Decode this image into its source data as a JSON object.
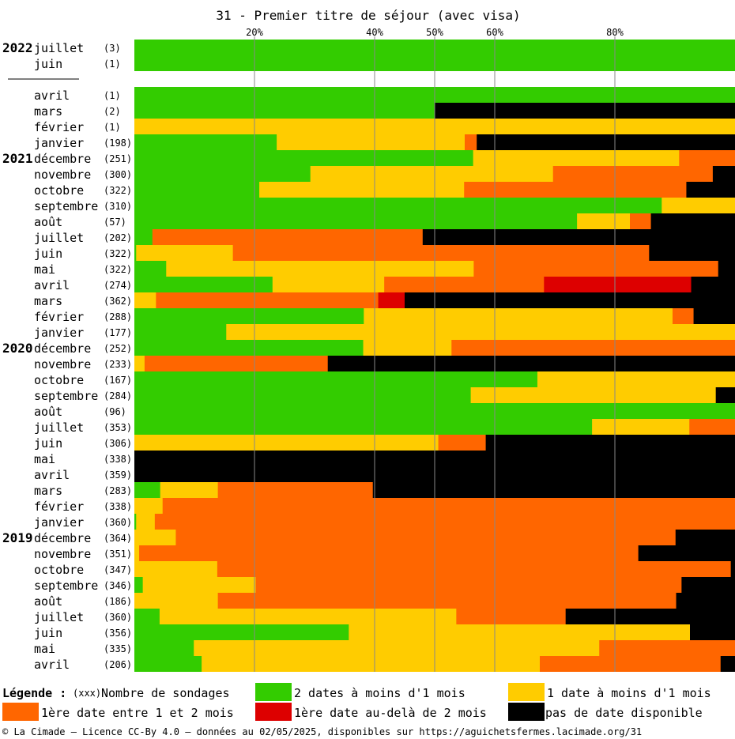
{
  "chart_data": {
    "type": "bar",
    "stacked": true,
    "orientation": "horizontal",
    "title": "31 - Premier titre de séjour (avec visa)",
    "x_ticks": [
      "20%",
      "40%",
      "50%",
      "60%",
      "80%"
    ],
    "x_tick_values": [
      20,
      40,
      50,
      60,
      80
    ],
    "xlim": [
      0,
      100
    ],
    "colors": {
      "green": "#33cc00",
      "yellow": "#ffcc00",
      "orange": "#ff6600",
      "red": "#dd0000",
      "black": "#000000"
    },
    "rows": [
      {
        "year": "2022",
        "month": "juillet",
        "count": "(3)",
        "values": [
          100,
          0,
          0,
          0,
          0
        ]
      },
      {
        "year": "",
        "month": "juin",
        "count": "(1)",
        "values": [
          100,
          0,
          0,
          0,
          0
        ]
      },
      {
        "separator": true
      },
      {
        "year": "",
        "month": "avril",
        "count": "(1)",
        "values": [
          100,
          0,
          0,
          0,
          0
        ]
      },
      {
        "year": "",
        "month": "mars",
        "count": "(2)",
        "values": [
          50,
          0,
          0,
          0,
          50
        ]
      },
      {
        "year": "",
        "month": "février",
        "count": "(1)",
        "values": [
          0,
          100,
          0,
          0,
          0
        ]
      },
      {
        "year": "",
        "month": "janvier",
        "count": "(198)",
        "values": [
          23.7,
          31.3,
          2.0,
          0,
          43.0
        ]
      },
      {
        "year": "2021",
        "month": "décembre",
        "count": "(251)",
        "values": [
          56.4,
          34.3,
          9.3,
          0,
          0
        ]
      },
      {
        "year": "",
        "month": "novembre",
        "count": "(300)",
        "values": [
          29.3,
          40.4,
          26.6,
          0,
          3.7
        ]
      },
      {
        "year": "",
        "month": "octobre",
        "count": "(322)",
        "values": [
          20.8,
          34.1,
          37.0,
          0,
          8.1
        ]
      },
      {
        "year": "",
        "month": "septembre",
        "count": "(310)",
        "values": [
          87.8,
          12.2,
          0,
          0,
          0
        ]
      },
      {
        "year": "",
        "month": "août",
        "count": "(57)",
        "values": [
          73.7,
          8.8,
          3.5,
          0,
          14.0
        ]
      },
      {
        "year": "",
        "month": "juillet",
        "count": "(202)",
        "values": [
          3.0,
          0,
          45.0,
          0,
          52.0
        ]
      },
      {
        "year": "",
        "month": "juin",
        "count": "(322)",
        "values": [
          0.3,
          16.1,
          69.3,
          0,
          14.3
        ]
      },
      {
        "year": "",
        "month": "mai",
        "count": "(322)",
        "values": [
          5.3,
          51.2,
          40.7,
          0,
          2.8
        ]
      },
      {
        "year": "",
        "month": "avril",
        "count": "(274)",
        "values": [
          23.0,
          18.6,
          26.6,
          24.5,
          7.3
        ]
      },
      {
        "year": "",
        "month": "mars",
        "count": "(362)",
        "values": [
          0,
          3.6,
          37.0,
          4.4,
          55.0
        ]
      },
      {
        "year": "",
        "month": "février",
        "count": "(288)",
        "values": [
          38.2,
          51.4,
          3.5,
          0,
          6.9
        ]
      },
      {
        "year": "",
        "month": "janvier",
        "count": "(177)",
        "values": [
          15.3,
          84.7,
          0,
          0,
          0
        ]
      },
      {
        "year": "2020",
        "month": "décembre",
        "count": "(252)",
        "values": [
          38.1,
          14.7,
          47.2,
          0,
          0
        ]
      },
      {
        "year": "",
        "month": "novembre",
        "count": "(233)",
        "values": [
          0,
          1.7,
          30.5,
          0,
          67.8
        ]
      },
      {
        "year": "",
        "month": "octobre",
        "count": "(167)",
        "values": [
          67.1,
          32.9,
          0,
          0,
          0
        ]
      },
      {
        "year": "",
        "month": "septembre",
        "count": "(284)",
        "values": [
          56.0,
          40.8,
          0,
          0,
          3.2
        ]
      },
      {
        "year": "",
        "month": "août",
        "count": "(96)",
        "values": [
          100,
          0,
          0,
          0,
          0
        ]
      },
      {
        "year": "",
        "month": "juillet",
        "count": "(353)",
        "values": [
          76.2,
          16.2,
          7.6,
          0,
          0
        ]
      },
      {
        "year": "",
        "month": "juin",
        "count": "(306)",
        "values": [
          0,
          50.6,
          7.9,
          0,
          41.5
        ]
      },
      {
        "year": "",
        "month": "mai",
        "count": "(338)",
        "values": [
          0,
          0,
          0,
          0,
          100
        ]
      },
      {
        "year": "",
        "month": "avril",
        "count": "(359)",
        "values": [
          0,
          0,
          0,
          0,
          100
        ]
      },
      {
        "year": "",
        "month": "mars",
        "count": "(283)",
        "values": [
          4.3,
          9.6,
          25.8,
          0,
          60.3
        ]
      },
      {
        "year": "",
        "month": "février",
        "count": "(338)",
        "values": [
          0,
          4.7,
          95.3,
          0,
          0
        ]
      },
      {
        "year": "",
        "month": "janvier",
        "count": "(360)",
        "values": [
          0.3,
          3.1,
          96.6,
          0,
          0
        ]
      },
      {
        "year": "2019",
        "month": "décembre",
        "count": "(364)",
        "values": [
          0,
          6.9,
          83.2,
          0,
          9.9
        ]
      },
      {
        "year": "",
        "month": "novembre",
        "count": "(351)",
        "values": [
          0,
          0.8,
          83.1,
          0,
          16.1
        ]
      },
      {
        "year": "",
        "month": "octobre",
        "count": "(347)",
        "values": [
          0,
          13.8,
          85.5,
          0,
          0.7
        ]
      },
      {
        "year": "",
        "month": "septembre",
        "count": "(346)",
        "values": [
          1.4,
          18.8,
          70.9,
          0,
          8.9
        ]
      },
      {
        "year": "",
        "month": "août",
        "count": "(186)",
        "values": [
          0,
          13.9,
          76.3,
          0,
          9.8
        ]
      },
      {
        "year": "",
        "month": "juillet",
        "count": "(360)",
        "values": [
          4.2,
          49.4,
          18.2,
          0,
          28.2
        ]
      },
      {
        "year": "",
        "month": "juin",
        "count": "(356)",
        "values": [
          35.7,
          56.8,
          0,
          0,
          7.5
        ]
      },
      {
        "year": "",
        "month": "mai",
        "count": "(335)",
        "values": [
          9.9,
          67.5,
          22.6,
          0,
          0
        ]
      },
      {
        "year": "",
        "month": "avril",
        "count": "(206)",
        "values": [
          11.2,
          56.3,
          30.1,
          0,
          2.4
        ]
      }
    ],
    "legend": {
      "title": "Légende :",
      "count_prefix": "(xxx)",
      "count_label": "Nombre de sondages",
      "items": [
        {
          "label": "2 dates à moins d'1 mois",
          "color": "#33cc00"
        },
        {
          "label": "1 date à moins d'1 mois",
          "color": "#ffcc00"
        },
        {
          "label": "1ère date entre 1 et 2 mois",
          "color": "#ff6600"
        },
        {
          "label": "1ère date au-delà de 2 mois",
          "color": "#dd0000"
        },
        {
          "label": "pas de date disponible",
          "color": "#000000"
        }
      ]
    }
  },
  "footer": "© La Cimade — Licence CC-By 4.0 — données au 02/05/2025, disponibles sur https://aguichetsfermes.lacimade.org/31"
}
